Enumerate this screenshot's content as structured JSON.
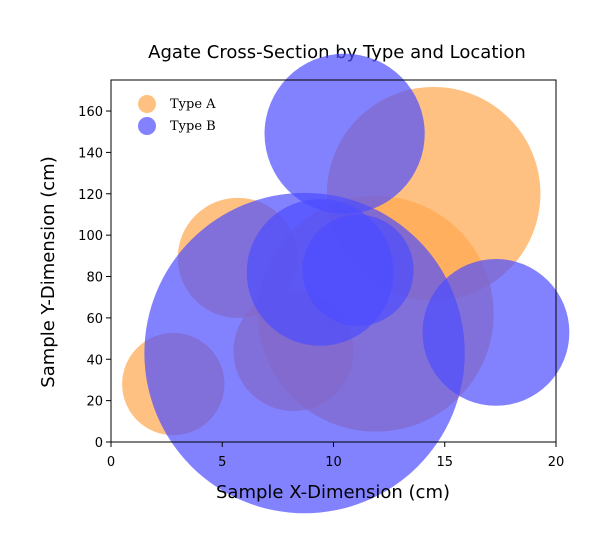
{
  "chart_data": {
    "type": "scatter",
    "variant": "bubble",
    "title": "Agate Cross-Section by Type and Location",
    "xlabel": "Sample X-Dimension (cm)",
    "ylabel": "Sample Y-Dimension (cm)",
    "xlim": [
      0,
      20
    ],
    "ylim": [
      0,
      175
    ],
    "xticks": [
      0,
      5,
      10,
      15,
      20
    ],
    "yticks": [
      0,
      20,
      40,
      60,
      80,
      100,
      120,
      140,
      160
    ],
    "grid": false,
    "legend": {
      "position": "top-left"
    },
    "series": [
      {
        "name": "Type A",
        "color": "#ffa64d",
        "opacity": 0.7,
        "points": [
          {
            "x": 2.8,
            "y": 28,
            "size": 2.3
          },
          {
            "x": 5.7,
            "y": 89,
            "size": 2.7
          },
          {
            "x": 8.2,
            "y": 44,
            "size": 2.7
          },
          {
            "x": 11.9,
            "y": 62,
            "size": 5.3
          },
          {
            "x": 14.5,
            "y": 120,
            "size": 4.8
          }
        ]
      },
      {
        "name": "Type B",
        "color": "#4d4dff",
        "opacity": 0.7,
        "points": [
          {
            "x": 8.7,
            "y": 43,
            "size": 7.2
          },
          {
            "x": 9.4,
            "y": 82,
            "size": 3.3
          },
          {
            "x": 10.5,
            "y": 149,
            "size": 3.6
          },
          {
            "x": 11.1,
            "y": 83,
            "size": 2.5
          },
          {
            "x": 17.3,
            "y": 53,
            "size": 3.3
          }
        ]
      }
    ]
  }
}
